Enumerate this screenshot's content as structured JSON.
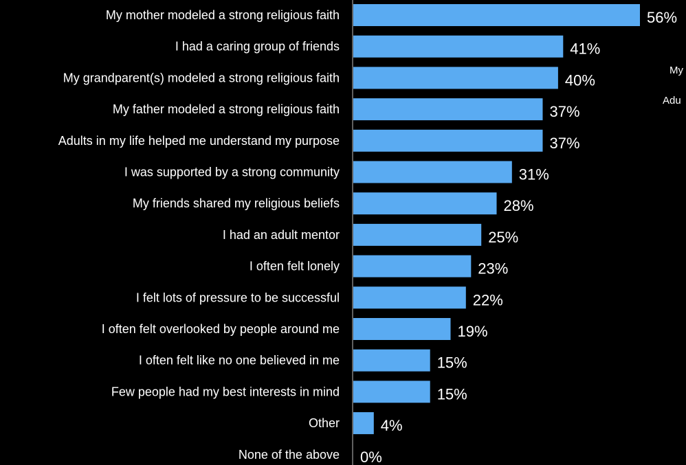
{
  "chart_data": {
    "type": "bar",
    "orientation": "horizontal",
    "categories": [
      "My mother modeled a strong religious faith",
      "I had a caring group of friends",
      "My grandparent(s) modeled a strong religious faith",
      "My father modeled a strong religious faith",
      "Adults in my life helped me understand my purpose",
      "I was supported by a strong community",
      "My friends shared my religious beliefs",
      "I had an adult mentor",
      "I often felt lonely",
      "I felt lots of pressure to be successful",
      "I often felt overlooked by people around me",
      "I often felt like no one believed in me",
      "Few people had my best interests in mind",
      "Other",
      "None of the above"
    ],
    "values": [
      56,
      41,
      40,
      37,
      37,
      31,
      28,
      25,
      23,
      22,
      19,
      15,
      15,
      4,
      0
    ],
    "value_labels": [
      "56%",
      "41%",
      "40%",
      "37%",
      "37%",
      "31%",
      "28%",
      "25%",
      "23%",
      "22%",
      "19%",
      "15%",
      "15%",
      "4%",
      "0%"
    ],
    "unit": "%",
    "xlim": [
      0,
      56
    ],
    "grid": false,
    "colors": {
      "bar": "#5aabf2",
      "background": "#000000",
      "text": "#ffffff",
      "axis": "#bfbfbf"
    }
  },
  "side_notes": [
    "My",
    "Adu"
  ]
}
